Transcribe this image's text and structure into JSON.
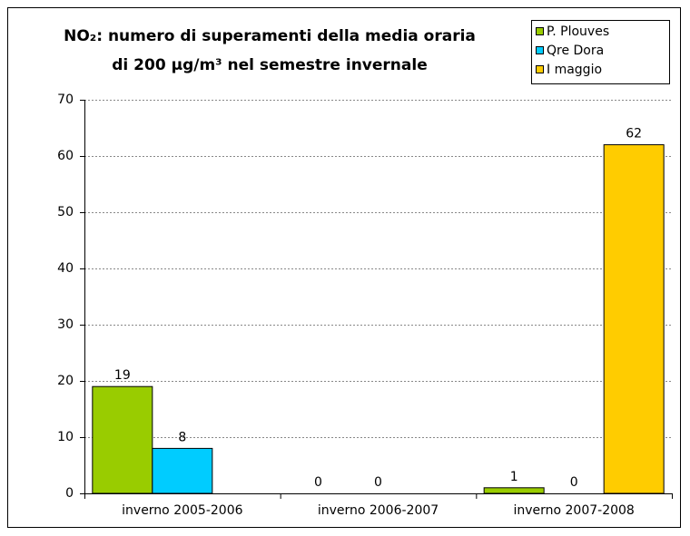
{
  "chart_data": {
    "type": "bar",
    "title": [
      "NO₂: numero di superamenti della media oraria",
      "di 200 µg/m³ nel semestre invernale"
    ],
    "categories": [
      "inverno 2005-2006",
      "inverno 2006-2007",
      "inverno 2007-2008"
    ],
    "series": [
      {
        "name": "P. Plouves",
        "color": "#99cc00",
        "values": [
          19,
          0,
          1
        ]
      },
      {
        "name": "Qre Dora",
        "color": "#00ccff",
        "values": [
          8,
          0,
          0
        ]
      },
      {
        "name": "I maggio",
        "color": "#ffcc00",
        "values": [
          null,
          null,
          62
        ]
      }
    ],
    "ylim": [
      0,
      70
    ],
    "yticks": [
      0,
      10,
      20,
      30,
      40,
      50,
      60,
      70
    ],
    "grid": true,
    "legend": "top-right"
  }
}
